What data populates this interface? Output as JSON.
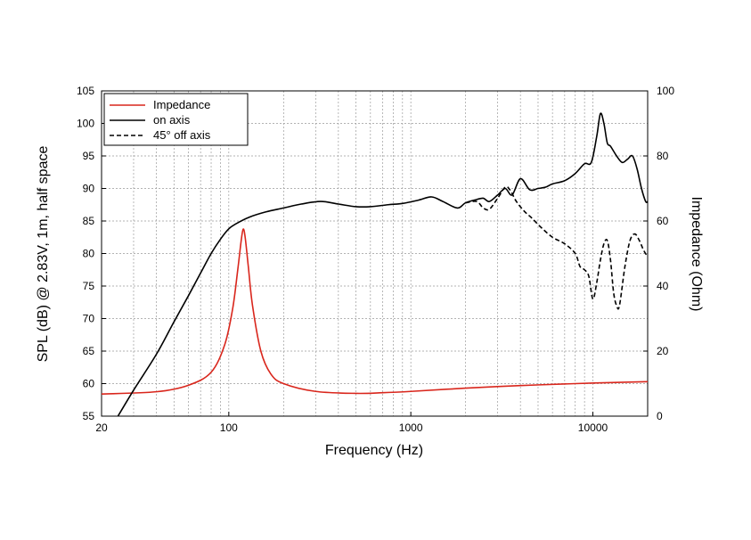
{
  "chart_data": {
    "type": "line",
    "xlabel": "Frequency (Hz)",
    "ylabel_left": "SPL (dB) @ 2.83V, 1m, half space",
    "ylabel_right": "Impedance (Ohm)",
    "xscale": "log",
    "xlim": [
      20,
      20000
    ],
    "ylim_left": [
      55,
      105
    ],
    "ylim_right": [
      0,
      100
    ],
    "grid": true,
    "legend_position": "top-left",
    "x_tick_labels": [
      "20",
      "100",
      "1000",
      "10000"
    ],
    "y_left_tick_labels": [
      "55",
      "60",
      "65",
      "70",
      "75",
      "80",
      "85",
      "90",
      "95",
      "100",
      "105"
    ],
    "y_right_tick_labels": [
      "0",
      "20",
      "40",
      "60",
      "80",
      "100"
    ],
    "colors": {
      "impedance": "#d9261c",
      "on_axis": "#000000",
      "off_axis": "#000000"
    },
    "series": [
      {
        "name": "Impedance",
        "axis": "right",
        "style": "solid",
        "color": "#d9261c",
        "points": [
          [
            20,
            6.8
          ],
          [
            40,
            7.5
          ],
          [
            60,
            9.5
          ],
          [
            80,
            13.5
          ],
          [
            95,
            22
          ],
          [
            105,
            33
          ],
          [
            112,
            45
          ],
          [
            117,
            54
          ],
          [
            120,
            57.5
          ],
          [
            123,
            55
          ],
          [
            128,
            46
          ],
          [
            135,
            34
          ],
          [
            150,
            20
          ],
          [
            170,
            13
          ],
          [
            200,
            10
          ],
          [
            300,
            7.6
          ],
          [
            500,
            7
          ],
          [
            700,
            7.2
          ],
          [
            1000,
            7.6
          ],
          [
            2000,
            8.6
          ],
          [
            4000,
            9.4
          ],
          [
            8000,
            10
          ],
          [
            12000,
            10.3
          ],
          [
            20000,
            10.6
          ]
        ]
      },
      {
        "name": "on axis",
        "axis": "left",
        "style": "solid",
        "color": "#000000",
        "points": [
          [
            20,
            51
          ],
          [
            24,
            54.5
          ],
          [
            30,
            59
          ],
          [
            40,
            64.5
          ],
          [
            50,
            69.5
          ],
          [
            60,
            73.5
          ],
          [
            70,
            77
          ],
          [
            80,
            80
          ],
          [
            90,
            82.2
          ],
          [
            100,
            83.8
          ],
          [
            110,
            84.6
          ],
          [
            130,
            85.6
          ],
          [
            160,
            86.4
          ],
          [
            200,
            87
          ],
          [
            250,
            87.6
          ],
          [
            320,
            88
          ],
          [
            400,
            87.6
          ],
          [
            500,
            87.2
          ],
          [
            600,
            87.2
          ],
          [
            750,
            87.5
          ],
          [
            900,
            87.7
          ],
          [
            1100,
            88.2
          ],
          [
            1300,
            88.7
          ],
          [
            1500,
            88
          ],
          [
            1800,
            87
          ],
          [
            2000,
            87.8
          ],
          [
            2300,
            88.3
          ],
          [
            2500,
            88.5
          ],
          [
            2700,
            88
          ],
          [
            3000,
            89
          ],
          [
            3300,
            90
          ],
          [
            3600,
            89
          ],
          [
            4000,
            91.5
          ],
          [
            4500,
            89.8
          ],
          [
            5000,
            90
          ],
          [
            5500,
            90.2
          ],
          [
            6000,
            90.7
          ],
          [
            7000,
            91.2
          ],
          [
            8000,
            92.3
          ],
          [
            9000,
            93.8
          ],
          [
            9800,
            94
          ],
          [
            10500,
            98
          ],
          [
            11000,
            101.5
          ],
          [
            11500,
            100
          ],
          [
            12000,
            97
          ],
          [
            12500,
            96.5
          ],
          [
            13500,
            95
          ],
          [
            14500,
            94
          ],
          [
            15500,
            94.5
          ],
          [
            16500,
            95
          ],
          [
            17500,
            93
          ],
          [
            18500,
            90
          ],
          [
            19500,
            88
          ],
          [
            20000,
            88
          ]
        ]
      },
      {
        "name": "45° off axis",
        "axis": "left",
        "style": "dashed",
        "color": "#000000",
        "points": [
          [
            2000,
            87.8
          ],
          [
            2300,
            88
          ],
          [
            2500,
            87
          ],
          [
            2700,
            86.8
          ],
          [
            3000,
            88.5
          ],
          [
            3300,
            90.2
          ],
          [
            3500,
            89.8
          ],
          [
            3800,
            88
          ],
          [
            4200,
            86.5
          ],
          [
            4600,
            85.5
          ],
          [
            5200,
            84
          ],
          [
            6000,
            82.5
          ],
          [
            7000,
            81.5
          ],
          [
            8000,
            80
          ],
          [
            8500,
            78
          ],
          [
            9000,
            77.5
          ],
          [
            9500,
            76.5
          ],
          [
            10000,
            73
          ],
          [
            10500,
            75.5
          ],
          [
            11000,
            79
          ],
          [
            11500,
            81.5
          ],
          [
            12000,
            82
          ],
          [
            12500,
            79
          ],
          [
            13000,
            74
          ],
          [
            13500,
            72
          ],
          [
            14000,
            72
          ],
          [
            15000,
            78
          ],
          [
            16000,
            82
          ],
          [
            17000,
            83
          ],
          [
            18000,
            82
          ],
          [
            19000,
            80.5
          ],
          [
            20000,
            79.5
          ]
        ]
      }
    ]
  }
}
